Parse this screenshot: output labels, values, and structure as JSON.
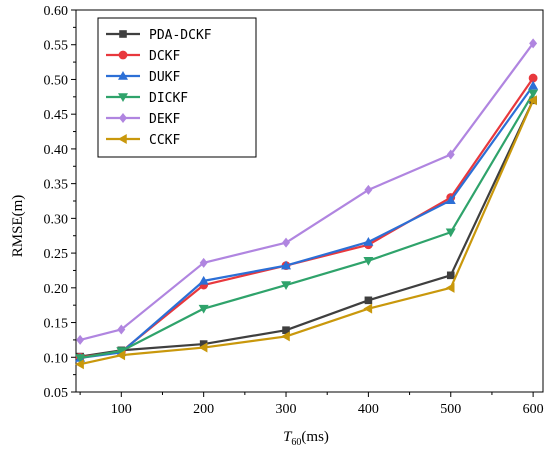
{
  "chart_data": {
    "type": "line",
    "x": [
      50,
      100,
      200,
      300,
      400,
      500,
      600
    ],
    "xticks": [
      100,
      200,
      300,
      400,
      500,
      600
    ],
    "xlim": [
      45,
      612
    ],
    "ylim": [
      0.05,
      0.6
    ],
    "yticks": [
      0.05,
      0.1,
      0.15,
      0.2,
      0.25,
      0.3,
      0.35,
      0.4,
      0.45,
      0.5,
      0.55,
      0.6
    ],
    "ytick_labels": [
      "0.05",
      "0.10",
      "0.15",
      "0.20",
      "0.25",
      "0.30",
      "0.35",
      "0.40",
      "0.45",
      "0.50",
      "0.55",
      "0.60"
    ],
    "xlabel_main": "T",
    "xlabel_sub": "60",
    "xlabel_unit": "(ms)",
    "ylabel": "RMSE(m)",
    "legend_position": "top-left",
    "grid": false,
    "series": [
      {
        "name": "PDA-DCKF",
        "color": "#3f3f3f",
        "marker": "square",
        "values": [
          0.101,
          0.11,
          0.119,
          0.139,
          0.182,
          0.218,
          0.47
        ]
      },
      {
        "name": "DCKF",
        "color": "#e8383d",
        "marker": "circle",
        "values": [
          0.1,
          0.108,
          0.204,
          0.232,
          0.262,
          0.33,
          0.502
        ]
      },
      {
        "name": "DUKF",
        "color": "#2c6fd6",
        "marker": "triangle-up",
        "values": [
          0.099,
          0.107,
          0.21,
          0.232,
          0.266,
          0.326,
          0.491
        ]
      },
      {
        "name": "DICKF",
        "color": "#2fa36b",
        "marker": "triangle-down",
        "values": [
          0.099,
          0.109,
          0.17,
          0.204,
          0.239,
          0.28,
          0.48
        ]
      },
      {
        "name": "DEKF",
        "color": "#b085e0",
        "marker": "diamond",
        "values": [
          0.125,
          0.14,
          0.236,
          0.265,
          0.341,
          0.392,
          0.552
        ]
      },
      {
        "name": "CCKF",
        "color": "#c9980c",
        "marker": "triangle-left",
        "values": [
          0.09,
          0.103,
          0.114,
          0.13,
          0.17,
          0.2,
          0.47
        ]
      }
    ]
  }
}
